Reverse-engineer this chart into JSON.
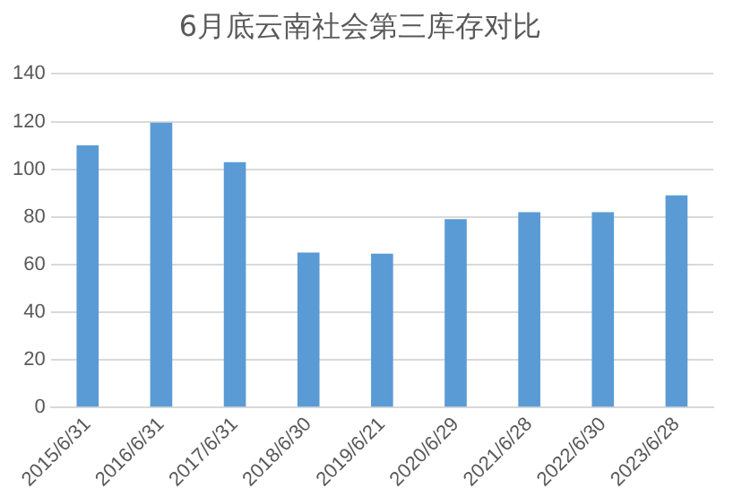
{
  "chart_data": {
    "type": "bar",
    "title": "6月底云南社会第三库存对比",
    "categories": [
      "2015/6/31",
      "2016/6/31",
      "2017/6/31",
      "2018/6/30",
      "2019/6/21",
      "2020/6/29",
      "2021/6/28",
      "2022/6/30",
      "2023/6/28"
    ],
    "values": [
      110,
      119.5,
      103,
      65,
      64.5,
      79,
      82,
      82,
      89
    ],
    "color": "#5b9bd5",
    "ylim": [
      0,
      140
    ],
    "yticks": [
      0,
      20,
      40,
      60,
      80,
      100,
      120,
      140
    ],
    "grid": "y",
    "legend": false
  }
}
